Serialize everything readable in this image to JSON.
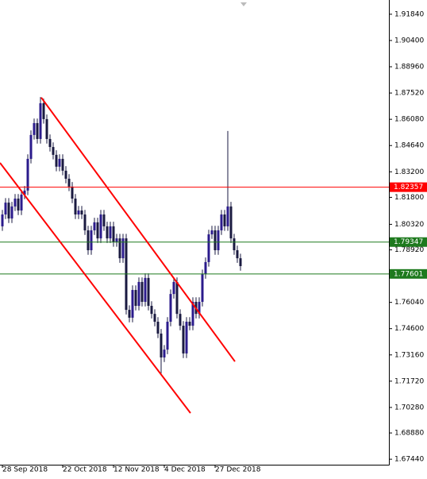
{
  "chart_data": {
    "type": "candlestick",
    "categories": [
      "28 Sep 2018",
      null,
      null,
      null,
      null,
      null,
      null,
      null,
      null,
      null,
      null,
      null,
      null,
      null,
      null,
      null,
      null,
      null,
      null,
      "22 Oct 2018",
      null,
      null,
      null,
      null,
      null,
      null,
      null,
      null,
      null,
      null,
      null,
      null,
      null,
      null,
      null,
      "12 Nov 2018",
      null,
      null,
      null,
      null,
      null,
      null,
      null,
      null,
      null,
      null,
      null,
      null,
      null,
      null,
      null,
      "4 Dec 2018",
      null,
      null,
      null,
      null,
      null,
      null,
      null,
      null,
      null,
      null,
      null,
      null,
      null,
      null,
      null,
      "27 Dec 2018",
      null,
      null,
      null,
      null,
      null,
      null,
      null,
      null
    ],
    "open": [
      1.8021,
      1.8086,
      1.8151,
      1.8064,
      1.813,
      1.8173,
      1.8108,
      1.8195,
      1.8217,
      1.8391,
      1.8522,
      1.8587,
      1.85,
      1.8696,
      1.8609,
      1.85,
      1.8456,
      1.8413,
      1.8348,
      1.8391,
      1.8326,
      1.8282,
      1.8239,
      1.8173,
      1.8086,
      1.8108,
      1.8086,
      1.7999,
      1.789,
      1.7999,
      1.8043,
      1.7955,
      1.8086,
      1.8021,
      1.7955,
      1.8021,
      1.7934,
      1.7955,
      1.7846,
      1.7955,
      1.7563,
      1.752,
      1.7672,
      1.7585,
      1.7716,
      1.7607,
      1.7738,
      1.7585,
      1.7541,
      1.7498,
      1.7433,
      1.7302,
      1.7345,
      1.7498,
      1.765,
      1.7716,
      1.7541,
      1.7476,
      1.7324,
      1.7498,
      1.7476,
      1.7607,
      1.7541,
      1.7607,
      1.7759,
      1.7825,
      1.7977,
      1.7999,
      1.789,
      1.7999,
      1.8086,
      1.8021,
      1.813,
      1.7955,
      1.789,
      1.7846
    ],
    "high": [
      1.8111,
      1.8176,
      1.8176,
      1.8155,
      1.8198,
      1.8198,
      1.822,
      1.8242,
      1.8416,
      1.8547,
      1.8612,
      1.8612,
      1.873,
      1.8721,
      1.8634,
      1.8525,
      1.8481,
      1.8438,
      1.8416,
      1.8416,
      1.8351,
      1.8307,
      1.8264,
      1.8198,
      1.8133,
      1.8133,
      1.8111,
      1.8024,
      1.8024,
      1.8068,
      1.8068,
      1.8111,
      1.8111,
      1.8046,
      1.8046,
      1.8046,
      1.798,
      1.798,
      1.798,
      1.798,
      1.7588,
      1.7697,
      1.7697,
      1.7741,
      1.7741,
      1.7763,
      1.7763,
      1.761,
      1.7566,
      1.7523,
      1.7458,
      1.737,
      1.7523,
      1.7675,
      1.7741,
      1.7741,
      1.7566,
      1.7501,
      1.7523,
      1.7523,
      1.7632,
      1.7632,
      1.7632,
      1.7784,
      1.785,
      1.8002,
      1.8024,
      1.8024,
      1.8024,
      1.8111,
      1.8111,
      1.8544,
      1.8155,
      1.798,
      1.7915,
      1.7871
    ],
    "low": [
      1.7996,
      1.8061,
      1.8039,
      1.8039,
      1.8105,
      1.8083,
      1.8083,
      1.817,
      1.8192,
      1.8366,
      1.8497,
      1.8475,
      1.8475,
      1.8584,
      1.8475,
      1.8431,
      1.8388,
      1.8323,
      1.8323,
      1.8301,
      1.8257,
      1.8214,
      1.8148,
      1.8061,
      1.8061,
      1.8061,
      1.7974,
      1.7865,
      1.7865,
      1.7974,
      1.793,
      1.793,
      1.7996,
      1.793,
      1.793,
      1.7909,
      1.7909,
      1.7821,
      1.7821,
      1.7538,
      1.7495,
      1.7495,
      1.756,
      1.756,
      1.7582,
      1.7582,
      1.756,
      1.7516,
      1.7473,
      1.7408,
      1.7215,
      1.7277,
      1.732,
      1.7473,
      1.7625,
      1.7516,
      1.7451,
      1.7299,
      1.7299,
      1.7451,
      1.7451,
      1.7516,
      1.7516,
      1.7582,
      1.7734,
      1.78,
      1.7952,
      1.7865,
      1.7865,
      1.7974,
      1.7996,
      1.7996,
      1.793,
      1.7865,
      1.7821,
      1.7778
    ],
    "close": [
      1.8086,
      1.8151,
      1.8064,
      1.813,
      1.8173,
      1.8108,
      1.8195,
      1.8217,
      1.8391,
      1.8522,
      1.8587,
      1.85,
      1.8696,
      1.8609,
      1.85,
      1.8456,
      1.8413,
      1.8348,
      1.8391,
      1.8326,
      1.8282,
      1.8239,
      1.8173,
      1.8086,
      1.8108,
      1.8086,
      1.7999,
      1.789,
      1.7999,
      1.8043,
      1.7955,
      1.8086,
      1.8021,
      1.7955,
      1.8021,
      1.7934,
      1.7955,
      1.7846,
      1.7955,
      1.7563,
      1.752,
      1.7672,
      1.7585,
      1.7716,
      1.7607,
      1.7738,
      1.7585,
      1.7541,
      1.7498,
      1.7433,
      1.7302,
      1.7345,
      1.7498,
      1.765,
      1.7716,
      1.7541,
      1.7476,
      1.7324,
      1.7498,
      1.7476,
      1.7607,
      1.7541,
      1.7607,
      1.7759,
      1.7825,
      1.7977,
      1.7999,
      1.789,
      1.7999,
      1.8086,
      1.8021,
      1.813,
      1.7955,
      1.789,
      1.7846,
      1.7803
    ],
    "up_color": "#2b1b8c",
    "down_color": "#1a1a40",
    "wick_color": "#1a1a40",
    "xlim": [
      -0.75,
      121.75
    ],
    "ylim": [
      1.6714,
      1.9262
    ],
    "yticks": [
      {
        "value": 1.9184,
        "label": "1.91840"
      },
      {
        "value": 1.904,
        "label": "1.90400"
      },
      {
        "value": 1.8896,
        "label": "1.88960"
      },
      {
        "value": 1.8752,
        "label": "1.87520"
      },
      {
        "value": 1.8608,
        "label": "1.86080"
      },
      {
        "value": 1.8464,
        "label": "1.84640"
      },
      {
        "value": 1.832,
        "label": "1.83200"
      },
      {
        "value": 1.818,
        "label": "1.81800"
      },
      {
        "value": 1.8032,
        "label": "1.80320"
      },
      {
        "value": 1.7892,
        "label": "1.78920"
      },
      {
        "value": 1.7604,
        "label": "1.76040"
      },
      {
        "value": 1.746,
        "label": "1.74600"
      },
      {
        "value": 1.7316,
        "label": "1.73160"
      },
      {
        "value": 1.7172,
        "label": "1.71720"
      },
      {
        "value": 1.7028,
        "label": "1.70280"
      },
      {
        "value": 1.6888,
        "label": "1.68880"
      },
      {
        "value": 1.6744,
        "label": "1.67440"
      }
    ],
    "levels": [
      {
        "value": 1.82357,
        "color": "#ff0000"
      },
      {
        "value": 1.79347,
        "color": "#1e7a1e"
      },
      {
        "value": 1.77601,
        "color": "#1e7a1e"
      }
    ],
    "trendlines": [
      {
        "x": [
          12.25,
          73.25
        ],
        "y": [
          1.8727,
          1.728
        ],
        "color": "#ff0000"
      },
      {
        "x": [
          -0.75,
          59.25
        ],
        "y": [
          1.8369,
          1.6997
        ],
        "color": "#ff0000"
      }
    ]
  }
}
